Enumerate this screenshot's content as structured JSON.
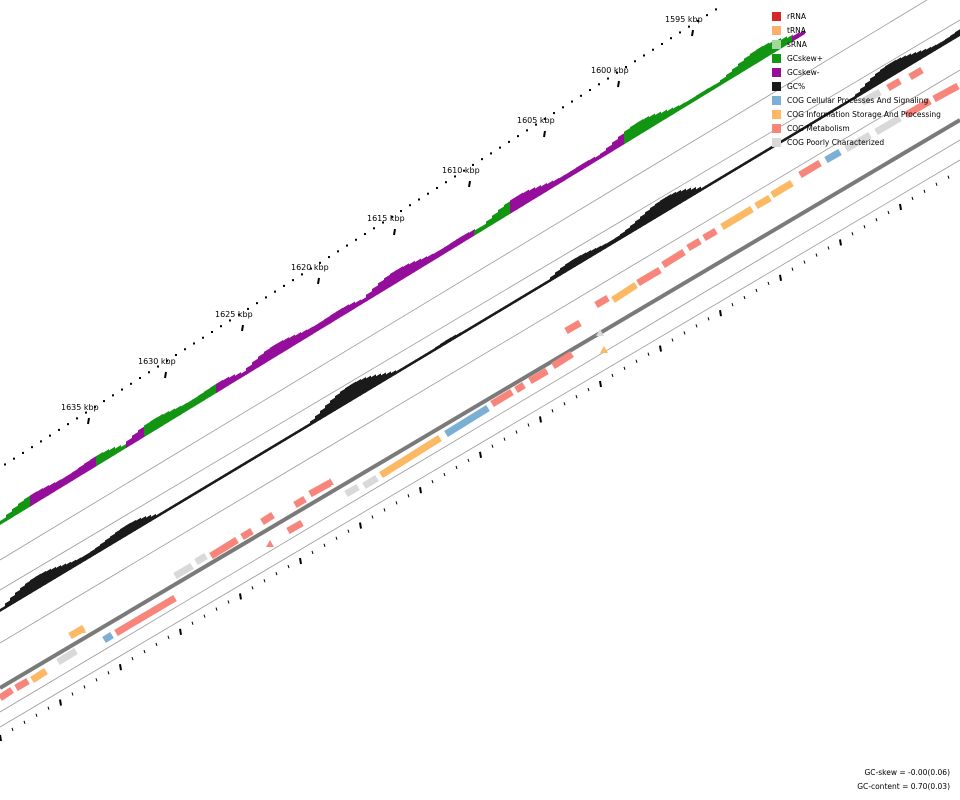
{
  "map": {
    "ticks": [
      "1595 kbp",
      "1600 kbp",
      "1605 kbp",
      "1610 kbp",
      "1615 kbp",
      "1620 kbp",
      "1625 kbp",
      "1630 kbp",
      "1635 kbp"
    ]
  },
  "legend": {
    "items": [
      {
        "label": "rRNA",
        "color": "#d62728"
      },
      {
        "label": "tRNA",
        "color": "#fdae6b"
      },
      {
        "label": "sRNA",
        "color": "#a1d99b"
      },
      {
        "label": "GCskew+",
        "color": "#129512"
      },
      {
        "label": "GCskew-",
        "color": "#950e9b"
      },
      {
        "label": "GC%",
        "color": "#1a1a1a"
      },
      {
        "label": "COG Cellular Processes And Signaling",
        "color": "#7bafd4"
      },
      {
        "label": "COG Information Storage And Processing",
        "color": "#fdb863"
      },
      {
        "label": "COG Metabolism",
        "color": "#f7857b"
      },
      {
        "label": "COG Poorly Characterized",
        "color": "#d9d9d9"
      }
    ]
  },
  "stats": {
    "gc_skew": "GC-skew = -0.00(0.06)",
    "gc_content": "GC-content = 0.70(0.03)"
  }
}
